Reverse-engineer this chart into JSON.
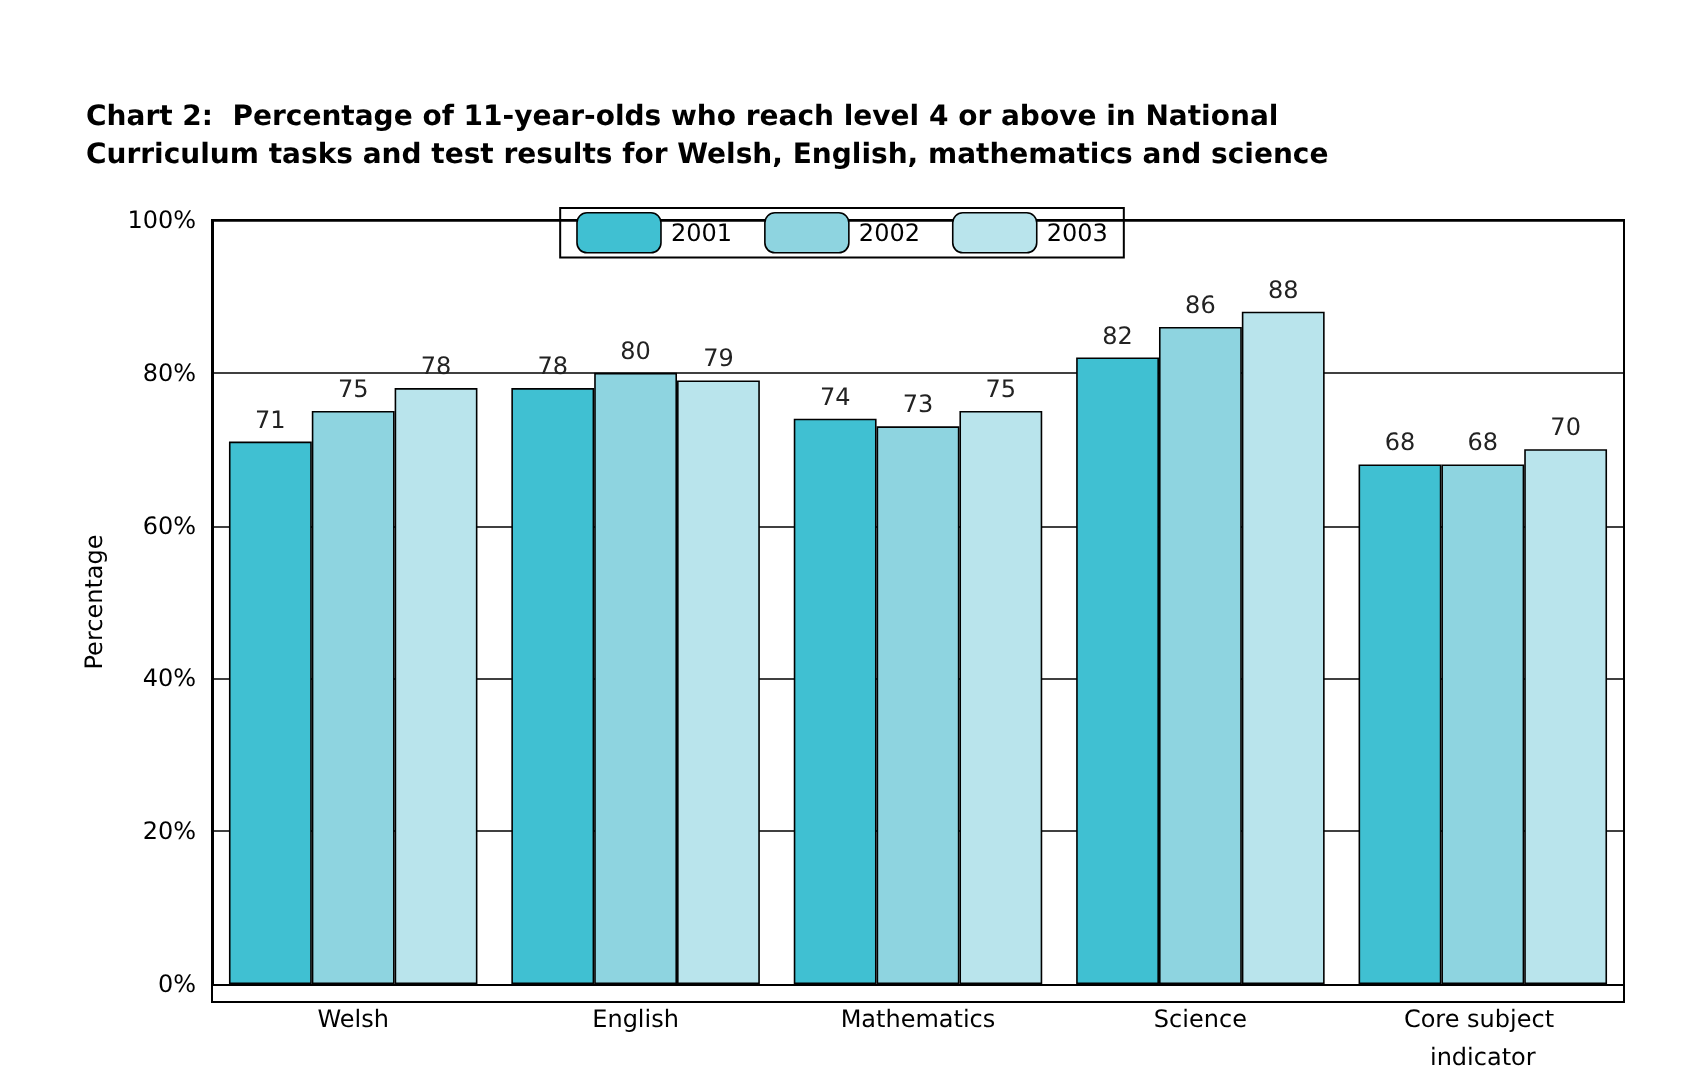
{
  "chart_data": {
    "type": "bar",
    "title": "Chart 2:  Percentage of 11-year-olds who reach level 4 or above in National Curriculum tasks and test results for Welsh, English, mathematics and science",
    "ylabel": "Percentage",
    "categories": [
      "Welsh",
      "English",
      "Mathematics",
      "Science",
      "Core subject indicator"
    ],
    "series": [
      {
        "name": "2001",
        "color": "#40c0d2",
        "values": [
          71,
          78,
          74,
          82,
          68
        ]
      },
      {
        "name": "2002",
        "color": "#8ed4e0",
        "values": [
          75,
          80,
          73,
          86,
          68
        ]
      },
      {
        "name": "2003",
        "color": "#b9e4ec",
        "values": [
          78,
          79,
          75,
          88,
          70
        ]
      }
    ],
    "ylim": [
      0,
      100
    ],
    "yticks": [
      {
        "value": 0,
        "label": "0%"
      },
      {
        "value": 20,
        "label": "20%"
      },
      {
        "value": 40,
        "label": "40%"
      },
      {
        "value": 60,
        "label": "60%"
      },
      {
        "value": 80,
        "label": "80%"
      },
      {
        "value": 100,
        "label": "100%"
      }
    ],
    "grid": "y",
    "legend": "top",
    "data_labels": true
  }
}
